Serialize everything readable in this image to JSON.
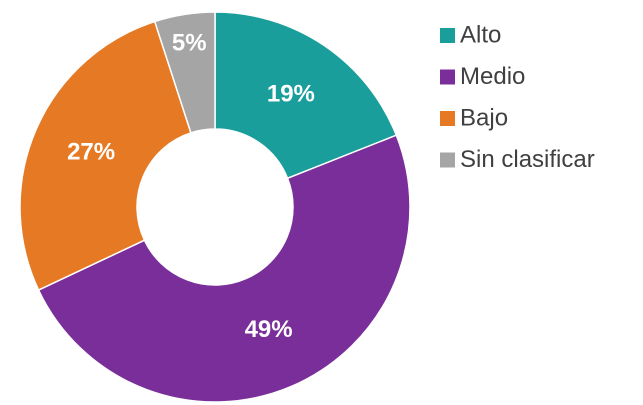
{
  "chart_data": {
    "type": "donut",
    "categories": [
      "Alto",
      "Medio",
      "Bajo",
      "Sin clasificar"
    ],
    "values": [
      19,
      49,
      27,
      5
    ],
    "value_labels": [
      "19%",
      "49%",
      "27%",
      "5%"
    ],
    "colors": [
      "#1a9e9b",
      "#7a2e9a",
      "#e67a24",
      "#a5a5a5"
    ],
    "legend": "right"
  }
}
